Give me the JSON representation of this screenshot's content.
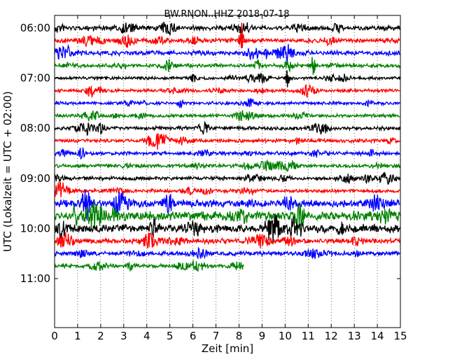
{
  "chart_data": {
    "type": "line",
    "title": "BW.RNON..HHZ 2018-07-18",
    "xlabel": "Zeit  [min]",
    "ylabel": "UTC (Lokalzeit = UTC + 02:00)",
    "xlim": [
      0,
      15
    ],
    "x_ticks": [
      "0",
      "1",
      "2",
      "3",
      "4",
      "5",
      "6",
      "7",
      "8",
      "9",
      "10",
      "11",
      "12",
      "13",
      "14",
      "15"
    ],
    "y_ticks": [
      "06:00",
      "07:00",
      "08:00",
      "09:00",
      "10:00",
      "11:00"
    ],
    "grid": "vertical dotted",
    "trace_colors": [
      "#000000",
      "#ff0000",
      "#0000ff",
      "#008000"
    ],
    "traces": [
      {
        "start": "06:00",
        "end_min": 15,
        "color": "#000000",
        "amp": 1.0
      },
      {
        "start": "06:15",
        "end_min": 15,
        "color": "#ff0000",
        "amp": 1.0
      },
      {
        "start": "06:30",
        "end_min": 15,
        "color": "#0000ff",
        "amp": 1.0
      },
      {
        "start": "06:45",
        "end_min": 15,
        "color": "#008000",
        "amp": 0.8
      },
      {
        "start": "07:00",
        "end_min": 15,
        "color": "#000000",
        "amp": 0.7
      },
      {
        "start": "07:15",
        "end_min": 15,
        "color": "#ff0000",
        "amp": 0.7
      },
      {
        "start": "07:30",
        "end_min": 15,
        "color": "#0000ff",
        "amp": 0.7
      },
      {
        "start": "07:45",
        "end_min": 15,
        "color": "#008000",
        "amp": 0.7
      },
      {
        "start": "08:00",
        "end_min": 15,
        "color": "#000000",
        "amp": 0.8
      },
      {
        "start": "08:15",
        "end_min": 15,
        "color": "#ff0000",
        "amp": 0.8
      },
      {
        "start": "08:30",
        "end_min": 15,
        "color": "#0000ff",
        "amp": 0.8
      },
      {
        "start": "08:45",
        "end_min": 15,
        "color": "#008000",
        "amp": 0.8
      },
      {
        "start": "09:00",
        "end_min": 15,
        "color": "#000000",
        "amp": 0.8
      },
      {
        "start": "09:15",
        "end_min": 15,
        "color": "#ff0000",
        "amp": 0.8
      },
      {
        "start": "09:30",
        "end_min": 15,
        "color": "#0000ff",
        "amp": 1.6
      },
      {
        "start": "09:45",
        "end_min": 15,
        "color": "#008000",
        "amp": 2.0
      },
      {
        "start": "10:00",
        "end_min": 15,
        "color": "#000000",
        "amp": 1.8
      },
      {
        "start": "10:15",
        "end_min": 15,
        "color": "#ff0000",
        "amp": 1.1
      },
      {
        "start": "10:30",
        "end_min": 15,
        "color": "#0000ff",
        "amp": 0.9
      },
      {
        "start": "10:45",
        "end_min": 8.2,
        "color": "#008000",
        "amp": 0.8
      }
    ],
    "events": [
      {
        "trace": 1,
        "t": 8.1,
        "amp": 7
      },
      {
        "trace": 2,
        "t": 9.2,
        "amp": 2.5
      },
      {
        "trace": 3,
        "t": 11.2,
        "amp": 5
      },
      {
        "trace": 4,
        "t": 10.1,
        "amp": 4
      }
    ]
  }
}
